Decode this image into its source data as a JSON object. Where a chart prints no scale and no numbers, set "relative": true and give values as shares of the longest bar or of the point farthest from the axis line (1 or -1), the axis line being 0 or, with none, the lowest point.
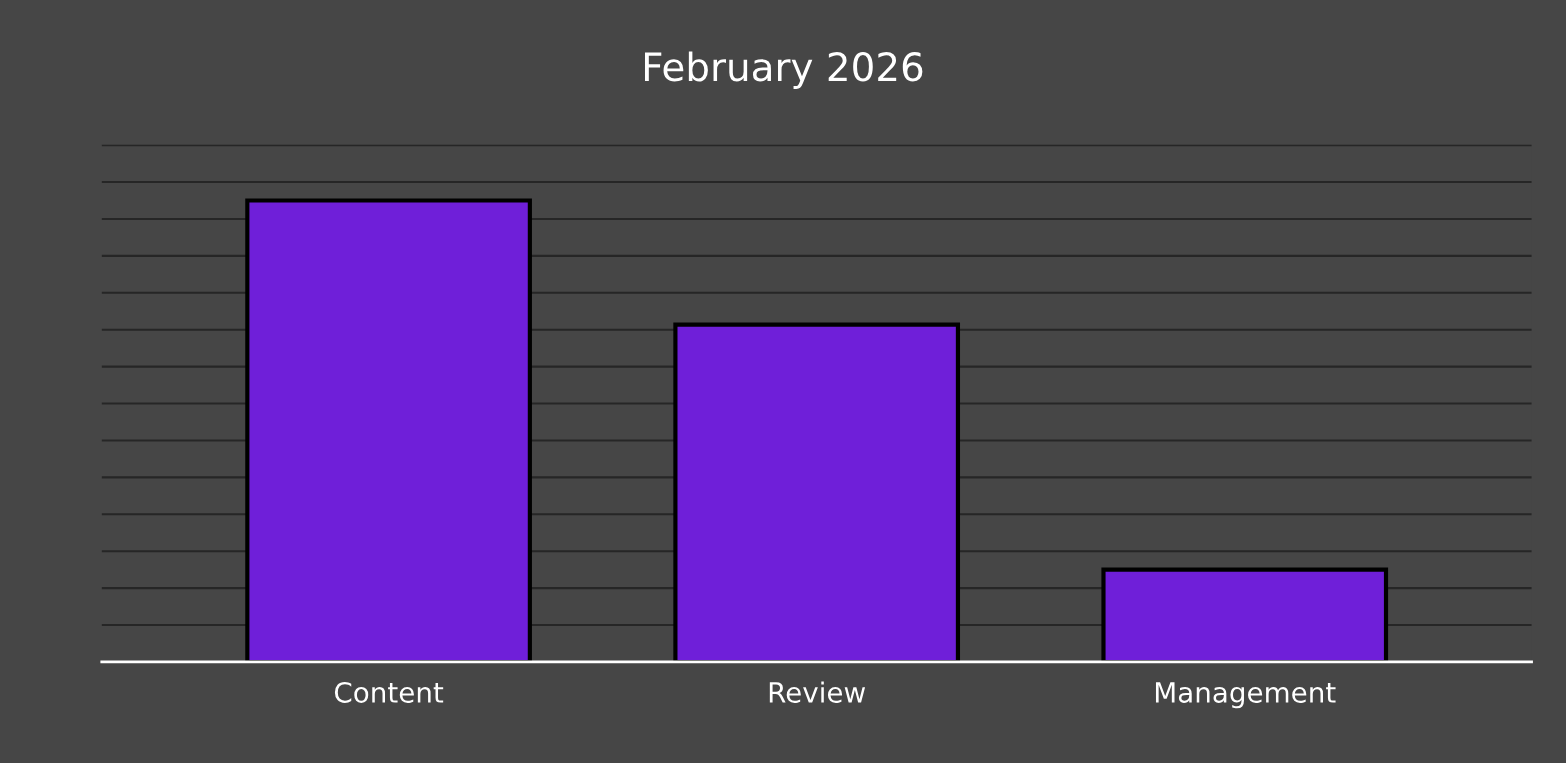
{
  "chart_data": {
    "type": "bar",
    "title": "February 2026",
    "relative": true,
    "categories": [
      "Content",
      "Review",
      "Management"
    ],
    "values": [
      1,
      0.731,
      0.2
    ],
    "color": "#6f1fd9",
    "grid": "y",
    "legend": false
  }
}
